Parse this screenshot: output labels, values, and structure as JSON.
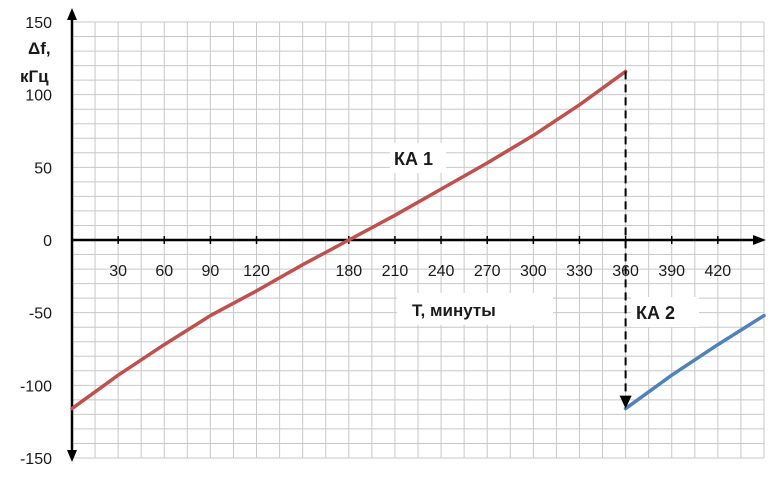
{
  "chart_data": {
    "type": "line",
    "title": "",
    "ylabel_line1": "Δf,",
    "ylabel_line2": "кГц",
    "xlabel": "T, минуты",
    "xlim": [
      0,
      450
    ],
    "ylim": [
      -150,
      150
    ],
    "x_ticks": [
      30,
      60,
      90,
      120,
      180,
      210,
      240,
      270,
      300,
      330,
      360,
      390,
      420
    ],
    "y_ticks": [
      150,
      100,
      50,
      0,
      -50,
      -100,
      -150
    ],
    "grid": true,
    "colors": {
      "ka1": "#c0504d",
      "ka2": "#4f81bd",
      "grid": "#c8c8c8",
      "axis": "#000000"
    },
    "series": [
      {
        "name": "КА 1",
        "x": [
          0,
          30,
          60,
          90,
          120,
          150,
          180,
          210,
          240,
          270,
          300,
          330,
          360
        ],
        "y": [
          -116,
          -93,
          -72,
          -52,
          -35,
          -17,
          0,
          17,
          35,
          53,
          72,
          93,
          116
        ]
      },
      {
        "name": "КА 2",
        "x": [
          360,
          390,
          420,
          450
        ],
        "y": [
          -116,
          -93,
          -72,
          -52
        ]
      }
    ],
    "annotations": [
      {
        "text": "КА 1",
        "x": 195,
        "y": 60
      },
      {
        "text": "КА 2",
        "x": 396,
        "y": -50
      }
    ],
    "transition": {
      "x": 360,
      "from_y": 116,
      "to_y": -116,
      "style": "dashed-arrow"
    }
  }
}
